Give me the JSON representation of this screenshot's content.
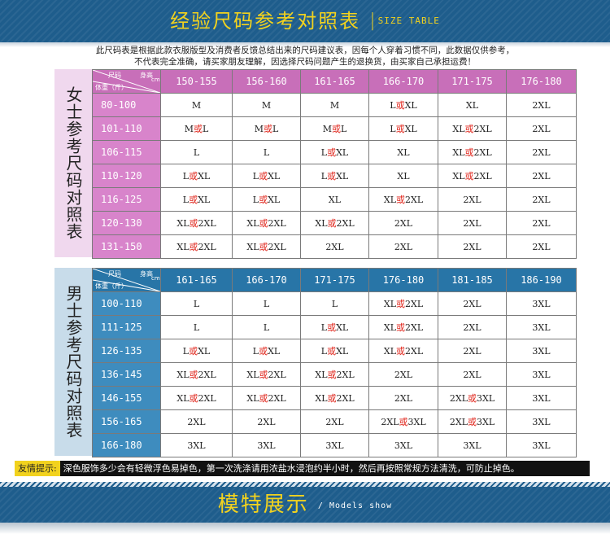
{
  "header": {
    "title": "经验尺码参考对照表",
    "subtitle": "SIZE TABLE"
  },
  "intro": [
    "此尺码表是根据此款衣服版型及消费者反馈总结出来的尺码建议表，因每个人穿着习惯不同，此数据仅供参考，",
    "不代表完全准确，请买家朋友理解，因选择尺码问题产生的退换货，由买家自己承担运费！"
  ],
  "corner": {
    "height_label": "尺码",
    "height_unit": "身高",
    "cm": "cm",
    "weight_label": "体重（斤）"
  },
  "women": {
    "label": "女士参考尺码对照表",
    "heights": [
      "150-155",
      "156-160",
      "161-165",
      "166-170",
      "171-175",
      "176-180"
    ],
    "rows": [
      {
        "weight": "80-100",
        "sizes": [
          "M",
          "M",
          "M",
          "L或XL",
          "XL",
          "2XL"
        ]
      },
      {
        "weight": "101-110",
        "sizes": [
          "M或L",
          "M或L",
          "M或L",
          "L或XL",
          "XL或2XL",
          "2XL"
        ]
      },
      {
        "weight": "106-115",
        "sizes": [
          "L",
          "L",
          "L或XL",
          "XL",
          "XL或2XL",
          "2XL"
        ]
      },
      {
        "weight": "110-120",
        "sizes": [
          "L或XL",
          "L或XL",
          "L或XL",
          "XL",
          "XL或2XL",
          "2XL"
        ]
      },
      {
        "weight": "116-125",
        "sizes": [
          "L或XL",
          "L或XL",
          "XL",
          "XL或2XL",
          "2XL",
          "2XL"
        ]
      },
      {
        "weight": "120-130",
        "sizes": [
          "XL或2XL",
          "XL或2XL",
          "XL或2XL",
          "2XL",
          "2XL",
          "2XL"
        ]
      },
      {
        "weight": "131-150",
        "sizes": [
          "XL或2XL",
          "XL或2XL",
          "2XL",
          "2XL",
          "2XL",
          "2XL"
        ]
      }
    ]
  },
  "men": {
    "label": "男士参考尺码对照表",
    "heights": [
      "161-165",
      "166-170",
      "171-175",
      "176-180",
      "181-185",
      "186-190"
    ],
    "rows": [
      {
        "weight": "100-110",
        "sizes": [
          "L",
          "L",
          "L",
          "XL或2XL",
          "2XL",
          "3XL"
        ]
      },
      {
        "weight": "111-125",
        "sizes": [
          "L",
          "L",
          "L或XL",
          "XL或2XL",
          "2XL",
          "3XL"
        ]
      },
      {
        "weight": "126-135",
        "sizes": [
          "L或XL",
          "L或XL",
          "L或XL",
          "XL或2XL",
          "2XL",
          "3XL"
        ]
      },
      {
        "weight": "136-145",
        "sizes": [
          "XL或2XL",
          "XL或2XL",
          "XL或2XL",
          "2XL",
          "2XL",
          "3XL"
        ]
      },
      {
        "weight": "146-155",
        "sizes": [
          "XL或2XL",
          "XL或2XL",
          "XL或2XL",
          "2XL",
          "2XL或3XL",
          "3XL"
        ]
      },
      {
        "weight": "156-165",
        "sizes": [
          "2XL",
          "2XL",
          "2XL",
          "2XL或3XL",
          "2XL或3XL",
          "3XL"
        ]
      },
      {
        "weight": "166-180",
        "sizes": [
          "3XL",
          "3XL",
          "3XL",
          "3XL",
          "3XL",
          "3XL"
        ]
      }
    ]
  },
  "tip": {
    "label": "友情提示:",
    "text": "深色服饰多少会有轻微浮色易掉色，第一次洗涤请用浓盐水浸泡约半小时，然后再按照常规方法清洗，可防止掉色。"
  },
  "footer": {
    "title": "模特展示",
    "subtitle": "/ Models show"
  },
  "colors": {
    "banner": "#1e5d8c",
    "title_yellow": "#f2d21e",
    "women_header": "#c86fb9",
    "women_side": "#f0d8ee",
    "men_header": "#2875a7",
    "men_side": "#c8dcea",
    "or_red": "#e0261c"
  }
}
